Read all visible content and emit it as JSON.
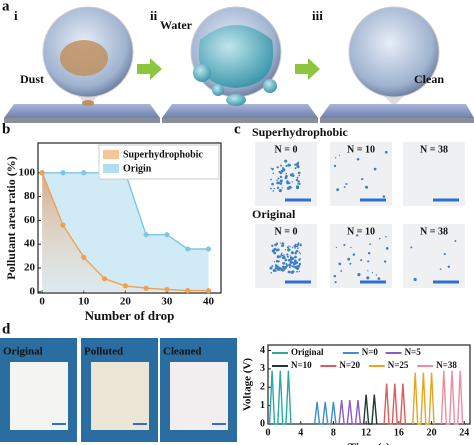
{
  "panel_labels": {
    "a": "a",
    "b": "b",
    "c": "c",
    "d": "d"
  },
  "panel_a": {
    "steps": [
      "i",
      "ii",
      "iii"
    ],
    "labels": {
      "dust": "Dust",
      "water": "Water",
      "clean": "Clean"
    }
  },
  "panel_c": {
    "row_titles": [
      "Superhydrophobic",
      "Original"
    ],
    "row1": [
      "N = 0",
      "N = 10",
      "N = 38"
    ],
    "row2": [
      "N = 0",
      "N = 10",
      "N = 38"
    ]
  },
  "panel_d": {
    "photos": [
      "Original",
      "Polluted",
      "Cleaned"
    ]
  },
  "chart_data": [
    {
      "type": "line",
      "x_label": "Number of drop",
      "y_label": "Pollutant area ratio (%)",
      "x": [
        0,
        5,
        10,
        15,
        20,
        25,
        30,
        35,
        40
      ],
      "series": [
        {
          "name": "Superhydrophobic",
          "color": "#f0a050",
          "values": [
            100,
            56,
            29,
            11,
            5,
            3,
            2,
            1,
            1
          ]
        },
        {
          "name": "Origin",
          "color": "#7cc6e6",
          "values": [
            100,
            100,
            100,
            100,
            100,
            48,
            48,
            36,
            36
          ]
        }
      ],
      "xlim": [
        -1,
        43
      ],
      "ylim": [
        -1,
        125
      ],
      "xticks": [
        0,
        10,
        20,
        30,
        40
      ],
      "yticks": [
        0,
        20,
        40,
        60,
        80,
        100
      ],
      "area": true,
      "markers": true,
      "legend": "upper right"
    },
    {
      "type": "line",
      "x_label": "Time (s)",
      "y_label": "Voltage (V)",
      "series": [
        {
          "name": "Original",
          "color": "#2aa9a6",
          "x": [
            0.2,
            0.5,
            0.8,
            1.2,
            1.5,
            1.8,
            2.2,
            2.5,
            2.8
          ],
          "values": [
            0,
            2.9,
            0,
            0,
            2.9,
            0,
            0,
            2.9,
            0
          ]
        },
        {
          "name": "N=0",
          "color": "#3a8fd8",
          "x": [
            5.7,
            6,
            6.3,
            6.7,
            7,
            7.3,
            7.7,
            8,
            8.3
          ],
          "values": [
            0,
            1.2,
            0,
            0,
            1.2,
            0,
            0,
            1.2,
            0
          ]
        },
        {
          "name": "N=5",
          "color": "#8a5cc7",
          "x": [
            8.7,
            9,
            9.3,
            9.7,
            10,
            10.3,
            10.7,
            11,
            11.3
          ],
          "values": [
            0,
            1.3,
            0,
            0,
            1.3,
            0,
            0,
            1.3,
            0
          ]
        },
        {
          "name": "N=10",
          "color": "#1d3b2c",
          "x": [
            11.7,
            12,
            12.3,
            12.7,
            13,
            13.3
          ],
          "values": [
            0,
            1.6,
            0,
            0,
            1.6,
            0
          ]
        },
        {
          "name": "N=20",
          "color": "#e05a5a",
          "x": [
            14.2,
            14.5,
            14.8,
            15.2,
            15.5,
            15.8,
            16.2,
            16.5,
            16.8
          ],
          "values": [
            0,
            2.2,
            0,
            0,
            2.2,
            0,
            0,
            2.2,
            0
          ]
        },
        {
          "name": "N=25",
          "color": "#e6a520",
          "x": [
            17.7,
            18,
            18.3,
            18.7,
            19,
            19.3,
            19.7,
            20,
            20.3
          ],
          "values": [
            0,
            2.8,
            0,
            0,
            2.8,
            0,
            0,
            2.8,
            0
          ]
        },
        {
          "name": "N=38",
          "color": "#f08ca0",
          "x": [
            21.2,
            21.5,
            21.8,
            22.2,
            22.5,
            22.8,
            23.2,
            23.5,
            23.8
          ],
          "values": [
            0,
            2.9,
            0,
            0,
            2.9,
            0,
            0,
            2.9,
            0
          ]
        }
      ],
      "xlim": [
        0,
        24.7
      ],
      "ylim": [
        0,
        4.3
      ],
      "xticks": [
        0,
        4,
        8,
        12,
        16,
        20,
        24
      ],
      "yticks": [
        0,
        1,
        2,
        3,
        4
      ],
      "area": false,
      "markers": false,
      "legend": "upper center"
    }
  ]
}
